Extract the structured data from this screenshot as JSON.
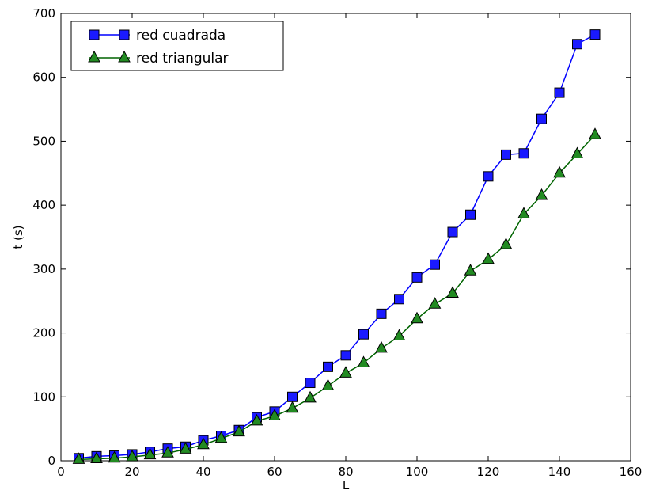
{
  "chart_data": {
    "type": "line",
    "title": "",
    "xlabel": "L",
    "ylabel": "t (s)",
    "xlim": [
      0,
      160
    ],
    "ylim": [
      0,
      700
    ],
    "xticks": [
      0,
      20,
      40,
      60,
      80,
      100,
      120,
      140,
      160
    ],
    "yticks": [
      0,
      100,
      200,
      300,
      400,
      500,
      600,
      700
    ],
    "grid": false,
    "legend_position": "upper-left",
    "x": [
      5,
      10,
      15,
      20,
      25,
      30,
      35,
      40,
      45,
      50,
      55,
      60,
      65,
      70,
      75,
      80,
      85,
      90,
      95,
      100,
      105,
      110,
      115,
      120,
      125,
      130,
      135,
      140,
      145,
      150
    ],
    "series": [
      {
        "name": "red cuadrada",
        "marker": "square",
        "color": "#0000ff",
        "marker_face": "#1a1aff",
        "values": [
          4,
          7,
          8,
          10,
          14,
          19,
          22,
          32,
          39,
          48,
          68,
          77,
          100,
          122,
          147,
          165,
          198,
          230,
          253,
          287,
          307,
          358,
          385,
          445,
          479,
          481,
          535,
          576,
          652,
          667
        ]
      },
      {
        "name": "red triangular",
        "marker": "triangle",
        "color": "#006400",
        "marker_face": "#228b22",
        "values": [
          2,
          3,
          4,
          6,
          9,
          12,
          18,
          25,
          35,
          45,
          62,
          70,
          82,
          98,
          117,
          137,
          153,
          176,
          195,
          222,
          245,
          262,
          297,
          315,
          338,
          386,
          415,
          450,
          480,
          510
        ]
      }
    ]
  }
}
